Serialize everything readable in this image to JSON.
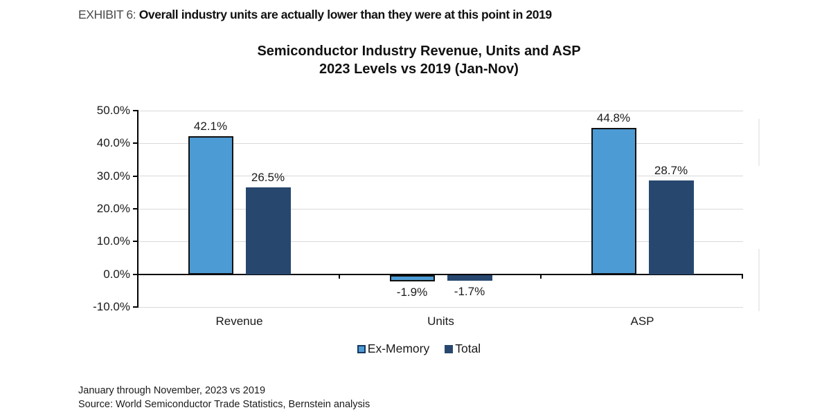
{
  "exhibit": {
    "prefix": "EXHIBIT 6:",
    "title": "Overall industry units are actually lower than they were at this point in 2019"
  },
  "chart_data": {
    "type": "bar",
    "title": "Semiconductor Industry Revenue, Units and ASP 2023 Levels vs 2019 (Jan-Nov)",
    "title_line1": "Semiconductor Industry Revenue, Units and ASP",
    "title_line2": "2023 Levels vs 2019 (Jan-Nov)",
    "categories": [
      "Revenue",
      "Units",
      "ASP"
    ],
    "series": [
      {
        "name": "Ex-Memory",
        "values": [
          42.1,
          -1.9,
          44.8
        ],
        "labels": [
          "42.1%",
          "-1.9%",
          "44.8%"
        ],
        "fill": "#4d9bd4",
        "border": "#101010"
      },
      {
        "name": "Total",
        "values": [
          26.5,
          -1.7,
          28.7
        ],
        "labels": [
          "26.5%",
          "-1.7%",
          "28.7%"
        ],
        "fill": "#27476e",
        "border": "#27476e"
      }
    ],
    "y_axis": {
      "tick_labels": [
        "50.0%",
        "40.0%",
        "30.0%",
        "20.0%",
        "10.0%",
        "0.0%",
        "-10.0%"
      ],
      "tick_values": [
        50,
        40,
        30,
        20,
        10,
        0,
        -10
      ],
      "min": -10,
      "max": 50
    },
    "legend": {
      "position": "bottom",
      "entries": [
        "Ex-Memory",
        "Total"
      ]
    },
    "grid": true,
    "gridline_color": "#d9d9d9",
    "axis_color": "#000000"
  },
  "footer": {
    "line1": "January through November, 2023 vs 2019",
    "line2": "Source: World Semiconductor Trade Statistics, Bernstein analysis"
  }
}
